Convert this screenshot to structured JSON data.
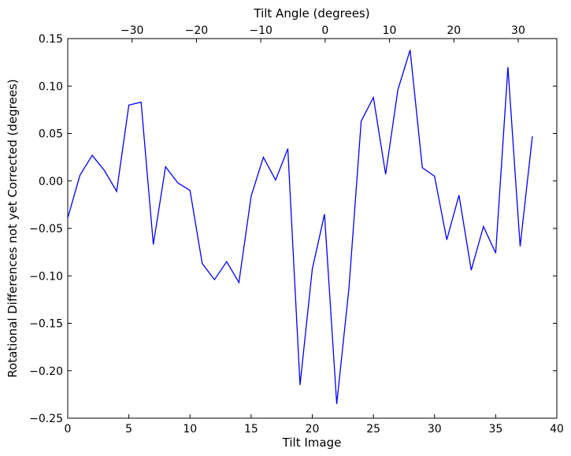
{
  "chart_data": {
    "type": "line",
    "xlabel": "Tilt Image",
    "ylabel": "Rotational Differences not yet Corrected (degrees)",
    "top_xlabel": "Tilt Angle (degrees)",
    "xlim": [
      0,
      40
    ],
    "ylim": [
      -0.25,
      0.15
    ],
    "x_ticks": [
      0,
      5,
      10,
      15,
      20,
      25,
      30,
      35,
      40
    ],
    "x_tick_labels": [
      "0",
      "5",
      "10",
      "15",
      "20",
      "25",
      "30",
      "35",
      "40"
    ],
    "y_ticks": [
      -0.25,
      -0.2,
      -0.15,
      -0.1,
      -0.05,
      0.0,
      0.05,
      0.1,
      0.15
    ],
    "y_tick_labels": [
      "−0.25",
      "−0.20",
      "−0.15",
      "−0.10",
      "−0.05",
      "0.00",
      "0.05",
      "0.10",
      "0.15"
    ],
    "top_ticks": [
      -30,
      -20,
      -10,
      0,
      10,
      20,
      30
    ],
    "top_tick_labels": [
      "−30",
      "−20",
      "−10",
      "0",
      "10",
      "20",
      "30"
    ],
    "top_xlim": [
      -40,
      36
    ],
    "grid": false,
    "series": [
      {
        "color": "#0000ff",
        "x": [
          0,
          1,
          2,
          3,
          4,
          5,
          6,
          7,
          8,
          9,
          10,
          11,
          12,
          13,
          14,
          15,
          16,
          17,
          18,
          19,
          20,
          21,
          22,
          23,
          24,
          25,
          26,
          27,
          28,
          29,
          30,
          31,
          32,
          33,
          34,
          35,
          36,
          37,
          38
        ],
        "y": [
          -0.039,
          0.006,
          0.027,
          0.011,
          -0.011,
          0.08,
          0.083,
          -0.067,
          0.015,
          -0.002,
          -0.01,
          -0.087,
          -0.104,
          -0.085,
          -0.107,
          -0.016,
          0.025,
          0.001,
          0.034,
          -0.215,
          -0.093,
          -0.035,
          -0.235,
          -0.113,
          0.063,
          0.088,
          0.007,
          0.096,
          0.138,
          0.014,
          0.005,
          -0.062,
          -0.015,
          -0.094,
          -0.048,
          -0.076,
          0.12,
          -0.069,
          0.047
        ]
      }
    ]
  }
}
